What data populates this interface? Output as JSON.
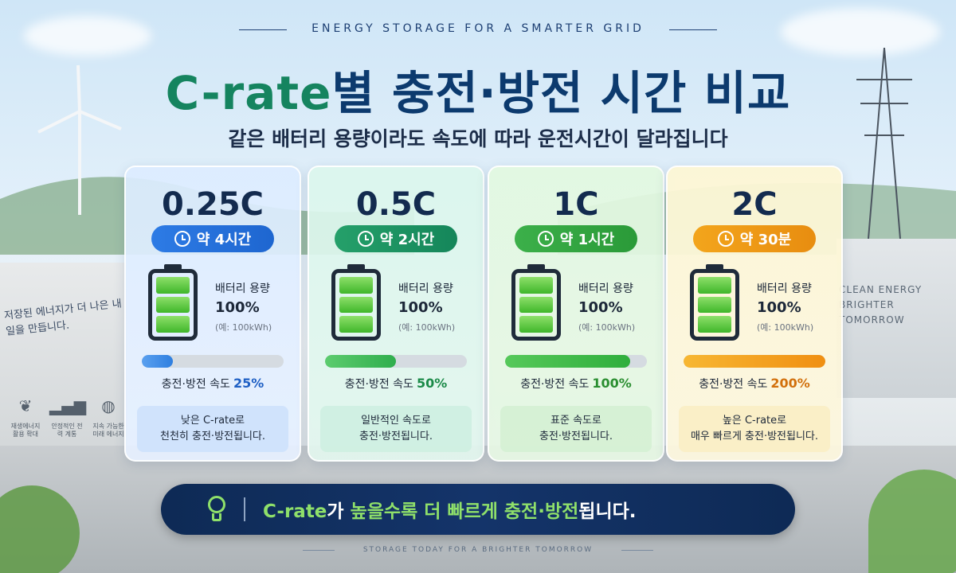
{
  "header": {
    "tagline_top": "ENERGY STORAGE FOR A SMARTER GRID",
    "title_highlight": "C-rate",
    "title_rest": "별 충전·방전 시간 비교",
    "subtitle": "같은 배터리 용량이라도 속도에 따라 운전시간이 달라집니다"
  },
  "scenery": {
    "left_wall_note": "저장된 에너지가 더 나은 내일을 만듭니다.",
    "right_wall_note": "CLEAN ENERGY BRIGHTER TOMORROW",
    "mini_icons": [
      {
        "icon": "leaf-icon",
        "label": "재생에너지 활용 확대"
      },
      {
        "icon": "bar-chart-icon",
        "label": "안정적인 전력 계통"
      },
      {
        "icon": "globe-icon",
        "label": "지속 가능한 미래 에너지"
      }
    ]
  },
  "cards": [
    {
      "rate": "0.25C",
      "time": "약 4시간",
      "capacity_label": "배터리 용량",
      "capacity_value": "100%",
      "capacity_note": "(예: 100kWh)",
      "speed_label": "충전·방전 속도",
      "speed_pct": "25%",
      "fill_ratio": 0.22,
      "desc_line1": "낮은 C-rate로",
      "desc_line2": "천천히 충전·방전됩니다.",
      "accent": "#1e66d0"
    },
    {
      "rate": "0.5C",
      "time": "약 2시간",
      "capacity_label": "배터리 용량",
      "capacity_value": "100%",
      "capacity_note": "(예: 100kWh)",
      "speed_label": "충전·방전 속도",
      "speed_pct": "50%",
      "fill_ratio": 0.5,
      "desc_line1": "일반적인 속도로",
      "desc_line2": "충전·방전됩니다.",
      "accent": "#15865a"
    },
    {
      "rate": "1C",
      "time": "약 1시간",
      "capacity_label": "배터리 용량",
      "capacity_value": "100%",
      "capacity_note": "(예: 100kWh)",
      "speed_label": "충전·방전 속도",
      "speed_pct": "100%",
      "fill_ratio": 0.88,
      "desc_line1": "표준 속도로",
      "desc_line2": "충전·방전됩니다.",
      "accent": "#2a9a38"
    },
    {
      "rate": "2C",
      "time": "약 30분",
      "capacity_label": "배터리 용량",
      "capacity_value": "100%",
      "capacity_note": "(예: 100kWh)",
      "speed_label": "충전·방전 속도",
      "speed_pct": "200%",
      "fill_ratio": 1.0,
      "desc_line1": "높은 C-rate로",
      "desc_line2": "매우 빠르게 충전·방전됩니다.",
      "accent": "#e88d10"
    }
  ],
  "banner": {
    "icon": "lightbulb-icon",
    "text_highlight": "C-rate",
    "text_mid": "가 ",
    "text_highlight2": "높을수록 더 빠르게 충전·방전",
    "text_end": "됩니다."
  },
  "footer": {
    "tagline_bottom": "STORAGE TODAY FOR A BRIGHTER TOMORROW"
  }
}
